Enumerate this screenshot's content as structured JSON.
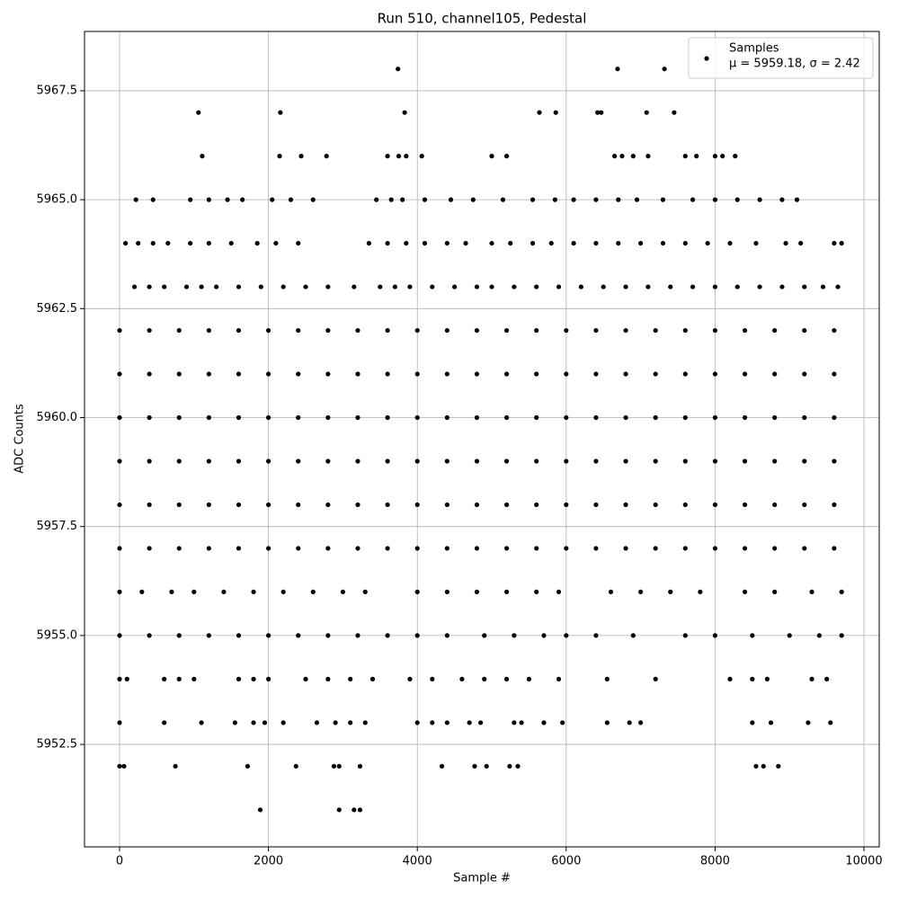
{
  "chart_data": {
    "type": "scatter",
    "title": "Run 510, channel105, Pedestal",
    "x_label": "Sample #",
    "y_label": "ADC Counts",
    "annotation": "μ = 5959.18, σ = 2.42",
    "xlim": [
      -471,
      10205
    ],
    "ylim": [
      5950.15,
      5968.86
    ],
    "xticks": [
      0,
      2000,
      4000,
      6000,
      8000,
      10000
    ],
    "yticks": [
      {
        "value": 5952.5,
        "label": "5952.5"
      },
      {
        "value": 5955,
        "label": "5955.0"
      },
      {
        "value": 5957.5,
        "label": "5957.5"
      },
      {
        "value": 5960,
        "label": "5960.0"
      },
      {
        "value": 5962.5,
        "label": "5962.5"
      },
      {
        "value": 5965,
        "label": "5965.0"
      },
      {
        "value": 5967.5,
        "label": "5967.5"
      }
    ],
    "grid": true,
    "legend_position": "upper right",
    "series": [
      {
        "name": "Samples",
        "color": "#000000",
        "x": [
          0,
          400,
          800,
          1200,
          1600,
          2000,
          2400,
          2800,
          3200,
          3600,
          4000,
          4400,
          4800,
          5200,
          5600,
          6000,
          6400,
          6800,
          7200,
          7600,
          8000,
          8400,
          8800,
          9200,
          9600,
          0,
          400,
          800,
          1200,
          1600,
          2000,
          2400,
          2800,
          3200,
          3600,
          4000,
          4400,
          4800,
          5200,
          5600,
          6000,
          6400,
          6800,
          7200,
          7600,
          8000,
          8400,
          8800,
          9200,
          9600,
          0,
          400,
          800,
          1200,
          1600,
          2000,
          2400,
          2800,
          3200,
          3600,
          4000,
          4400,
          4800,
          5200,
          5600,
          6000,
          6400,
          6800,
          7200,
          7600,
          8000,
          8400,
          8800,
          9200,
          9600,
          0,
          400,
          800,
          1200,
          1600,
          2000,
          2400,
          2800,
          3200,
          3600,
          4000,
          4400,
          4800,
          5200,
          5600,
          6000,
          6400,
          6800,
          7200,
          7600,
          8000,
          8400,
          8800,
          9200,
          9600,
          0,
          400,
          800,
          1200,
          1600,
          2000,
          2400,
          2800,
          3200,
          3600,
          4000,
          4400,
          4800,
          5200,
          5600,
          6000,
          6400,
          6800,
          7200,
          7600,
          8000,
          8400,
          8800,
          9200,
          9600,
          0,
          400,
          800,
          1200,
          1600,
          2000,
          2400,
          2800,
          3200,
          3600,
          4000,
          4400,
          4800,
          5200,
          5600,
          6000,
          6400,
          6800,
          7200,
          7600,
          8000,
          8400,
          8800,
          9200,
          9600,
          0,
          300,
          700,
          1000,
          1400,
          1800,
          2200,
          2600,
          3000,
          3300,
          4000,
          4400,
          4800,
          5200,
          5600,
          5900,
          6600,
          7000,
          7400,
          7800,
          8400,
          8800,
          9300,
          9700,
          0,
          400,
          800,
          1200,
          1600,
          2000,
          2400,
          2800,
          3200,
          3600,
          4000,
          4400,
          4900,
          5300,
          5700,
          6000,
          6400,
          6900,
          7600,
          8000,
          8500,
          9000,
          9400,
          9700,
          0,
          100,
          600,
          800,
          1000,
          1600,
          1800,
          2000,
          2500,
          2800,
          3100,
          3400,
          3900,
          4200,
          4600,
          4900,
          5200,
          5500,
          5900,
          6550,
          7200,
          8200,
          8500,
          8700,
          9300,
          9500,
          0,
          600,
          1100,
          1550,
          1800,
          1950,
          2200,
          2650,
          2900,
          3100,
          3300,
          4000,
          4200,
          4400,
          4700,
          4850,
          5300,
          5400,
          5700,
          5950,
          6550,
          6850,
          7000,
          8500,
          8750,
          9250,
          9550,
          0,
          60,
          750,
          1720,
          2370,
          2880,
          2950,
          3230,
          4330,
          4770,
          4930,
          5240,
          5350,
          8550,
          8650,
          8850,
          1890,
          2950,
          3150,
          3230,
          200,
          400,
          600,
          900,
          1100,
          1300,
          1600,
          1900,
          2200,
          2500,
          2800,
          3150,
          3500,
          3700,
          3900,
          4200,
          4500,
          4800,
          5000,
          5300,
          5600,
          5900,
          6200,
          6500,
          6800,
          7100,
          7400,
          7700,
          8000,
          8300,
          8600,
          8900,
          9200,
          9450,
          9650,
          80,
          250,
          450,
          650,
          950,
          1200,
          1500,
          1850,
          2100,
          2400,
          3350,
          3600,
          3850,
          4100,
          4400,
          4650,
          5000,
          5250,
          5550,
          5800,
          6100,
          6400,
          6700,
          7000,
          7300,
          7600,
          7900,
          8200,
          8550,
          8950,
          9150,
          9600,
          9700,
          220,
          450,
          950,
          1200,
          1450,
          1650,
          2050,
          2300,
          2600,
          3450,
          3650,
          3800,
          4100,
          4450,
          4750,
          5150,
          5550,
          5850,
          6100,
          6400,
          6700,
          6950,
          7300,
          7700,
          8000,
          8300,
          8600,
          8900,
          9100,
          1110,
          2150,
          2440,
          2780,
          3600,
          3750,
          3850,
          4060,
          5000,
          5200,
          6650,
          6750,
          6900,
          7100,
          7600,
          7750,
          8000,
          8100,
          8270,
          1060,
          2160,
          3830,
          5640,
          5860,
          6420,
          6470,
          7080,
          7450,
          3740,
          6690,
          7320
        ],
        "values": [
          5962,
          5962,
          5962,
          5962,
          5962,
          5962,
          5962,
          5962,
          5962,
          5962,
          5962,
          5962,
          5962,
          5962,
          5962,
          5962,
          5962,
          5962,
          5962,
          5962,
          5962,
          5962,
          5962,
          5962,
          5962,
          5961,
          5961,
          5961,
          5961,
          5961,
          5961,
          5961,
          5961,
          5961,
          5961,
          5961,
          5961,
          5961,
          5961,
          5961,
          5961,
          5961,
          5961,
          5961,
          5961,
          5961,
          5961,
          5961,
          5961,
          5961,
          5960,
          5960,
          5960,
          5960,
          5960,
          5960,
          5960,
          5960,
          5960,
          5960,
          5960,
          5960,
          5960,
          5960,
          5960,
          5960,
          5960,
          5960,
          5960,
          5960,
          5960,
          5960,
          5960,
          5960,
          5960,
          5959,
          5959,
          5959,
          5959,
          5959,
          5959,
          5959,
          5959,
          5959,
          5959,
          5959,
          5959,
          5959,
          5959,
          5959,
          5959,
          5959,
          5959,
          5959,
          5959,
          5959,
          5959,
          5959,
          5959,
          5959,
          5958,
          5958,
          5958,
          5958,
          5958,
          5958,
          5958,
          5958,
          5958,
          5958,
          5958,
          5958,
          5958,
          5958,
          5958,
          5958,
          5958,
          5958,
          5958,
          5958,
          5958,
          5958,
          5958,
          5958,
          5958,
          5957,
          5957,
          5957,
          5957,
          5957,
          5957,
          5957,
          5957,
          5957,
          5957,
          5957,
          5957,
          5957,
          5957,
          5957,
          5957,
          5957,
          5957,
          5957,
          5957,
          5957,
          5957,
          5957,
          5957,
          5957,
          5956,
          5956,
          5956,
          5956,
          5956,
          5956,
          5956,
          5956,
          5956,
          5956,
          5956,
          5956,
          5956,
          5956,
          5956,
          5956,
          5956,
          5956,
          5956,
          5956,
          5956,
          5956,
          5956,
          5956,
          5955,
          5955,
          5955,
          5955,
          5955,
          5955,
          5955,
          5955,
          5955,
          5955,
          5955,
          5955,
          5955,
          5955,
          5955,
          5955,
          5955,
          5955,
          5955,
          5955,
          5955,
          5955,
          5955,
          5955,
          5954,
          5954,
          5954,
          5954,
          5954,
          5954,
          5954,
          5954,
          5954,
          5954,
          5954,
          5954,
          5954,
          5954,
          5954,
          5954,
          5954,
          5954,
          5954,
          5954,
          5954,
          5954,
          5954,
          5954,
          5954,
          5954,
          5953,
          5953,
          5953,
          5953,
          5953,
          5953,
          5953,
          5953,
          5953,
          5953,
          5953,
          5953,
          5953,
          5953,
          5953,
          5953,
          5953,
          5953,
          5953,
          5953,
          5953,
          5953,
          5953,
          5953,
          5953,
          5953,
          5953,
          5952,
          5952,
          5952,
          5952,
          5952,
          5952,
          5952,
          5952,
          5952,
          5952,
          5952,
          5952,
          5952,
          5952,
          5952,
          5952,
          5951,
          5951,
          5951,
          5951,
          5963,
          5963,
          5963,
          5963,
          5963,
          5963,
          5963,
          5963,
          5963,
          5963,
          5963,
          5963,
          5963,
          5963,
          5963,
          5963,
          5963,
          5963,
          5963,
          5963,
          5963,
          5963,
          5963,
          5963,
          5963,
          5963,
          5963,
          5963,
          5963,
          5963,
          5963,
          5963,
          5963,
          5963,
          5963,
          5964,
          5964,
          5964,
          5964,
          5964,
          5964,
          5964,
          5964,
          5964,
          5964,
          5964,
          5964,
          5964,
          5964,
          5964,
          5964,
          5964,
          5964,
          5964,
          5964,
          5964,
          5964,
          5964,
          5964,
          5964,
          5964,
          5964,
          5964,
          5964,
          5964,
          5964,
          5964,
          5964,
          5965,
          5965,
          5965,
          5965,
          5965,
          5965,
          5965,
          5965,
          5965,
          5965,
          5965,
          5965,
          5965,
          5965,
          5965,
          5965,
          5965,
          5965,
          5965,
          5965,
          5965,
          5965,
          5965,
          5965,
          5965,
          5965,
          5965,
          5965,
          5965,
          5966,
          5966,
          5966,
          5966,
          5966,
          5966,
          5966,
          5966,
          5966,
          5966,
          5966,
          5966,
          5966,
          5966,
          5966,
          5966,
          5966,
          5966,
          5966,
          5967,
          5967,
          5967,
          5967,
          5967,
          5967,
          5967,
          5967,
          5967,
          5968,
          5968,
          5968
        ]
      }
    ]
  }
}
